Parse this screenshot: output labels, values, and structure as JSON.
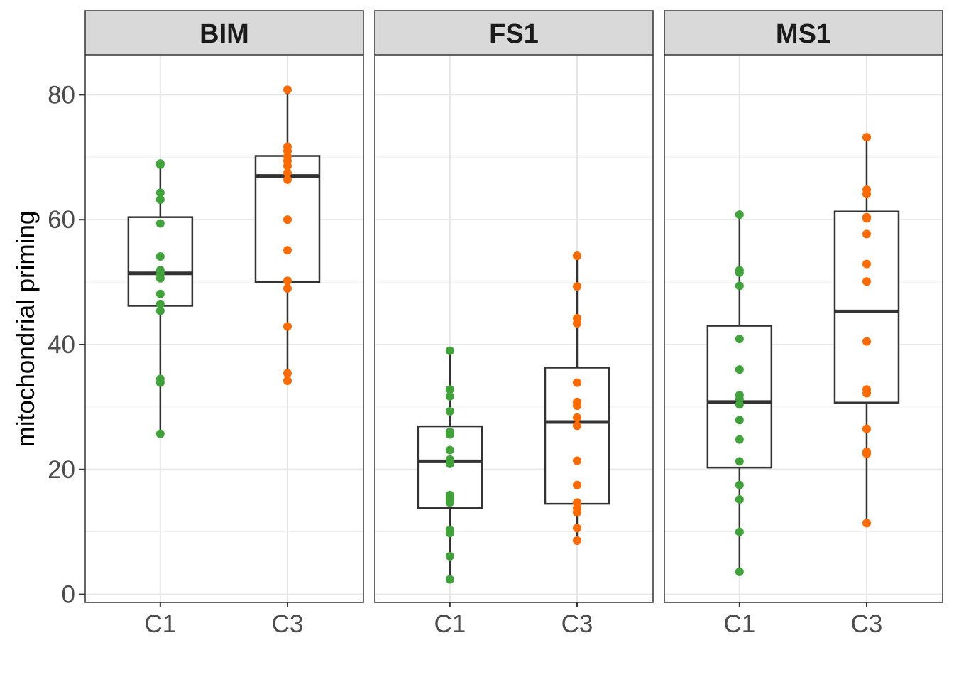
{
  "chart_data": {
    "type": "box",
    "title": "",
    "xlabel": "",
    "ylabel": "mitochondrial priming",
    "ylim": [
      -1.3,
      86.3
    ],
    "yticks": [
      0,
      20,
      40,
      60,
      80
    ],
    "ytick_labels": [
      "0",
      "20",
      "40",
      "60",
      "80"
    ],
    "grid": true,
    "categories": [
      "C1",
      "C3"
    ],
    "colors": {
      "C1": "#3fa33a",
      "C3": "#ff6a00"
    },
    "panels": [
      {
        "label": "BIM",
        "groups": [
          {
            "category": "C1",
            "box": {
              "q1": 46.2,
              "median": 51.4,
              "q3": 60.4,
              "whisker_low": 25.7,
              "whisker_high": 69.0
            },
            "points": [
              69.0,
              68.8,
              64.3,
              63.2,
              59.4,
              54.1,
              51.9,
              51.3,
              50.6,
              48.1,
              46.5,
              45.4,
              34.5,
              33.9,
              25.7
            ]
          },
          {
            "category": "C3",
            "box": {
              "q1": 50.0,
              "median": 67.0,
              "q3": 70.2,
              "whisker_low": 34.2,
              "whisker_high": 80.8
            },
            "points": [
              80.8,
              71.7,
              71.0,
              70.1,
              69.4,
              68.6,
              67.5,
              66.4,
              60.0,
              55.1,
              50.2,
              49.0,
              42.9,
              35.4,
              34.2
            ]
          }
        ]
      },
      {
        "label": "FS1",
        "groups": [
          {
            "category": "C1",
            "box": {
              "q1": 13.8,
              "median": 21.3,
              "q3": 26.9,
              "whisker_low": 2.4,
              "whisker_high": 39.0
            },
            "points": [
              39.0,
              32.8,
              31.7,
              29.3,
              26.0,
              25.6,
              23.1,
              21.6,
              20.9,
              15.9,
              15.3,
              14.7,
              10.3,
              9.8,
              6.1,
              2.4
            ]
          },
          {
            "category": "C3",
            "box": {
              "q1": 14.5,
              "median": 27.6,
              "q3": 36.3,
              "whisker_low": 8.6,
              "whisker_high": 54.2
            },
            "points": [
              54.2,
              49.3,
              44.2,
              43.4,
              33.9,
              30.8,
              30.2,
              28.3,
              27.0,
              21.4,
              17.5,
              14.7,
              13.8,
              13.1,
              10.6,
              8.6
            ]
          }
        ]
      },
      {
        "label": "MS1",
        "groups": [
          {
            "category": "C1",
            "box": {
              "q1": 20.3,
              "median": 30.8,
              "q3": 43.0,
              "whisker_low": 3.6,
              "whisker_high": 60.8
            },
            "points": [
              60.8,
              51.9,
              51.5,
              49.4,
              40.9,
              36.0,
              31.9,
              31.3,
              30.4,
              27.9,
              24.8,
              21.3,
              17.5,
              15.2,
              10.0,
              3.6
            ]
          },
          {
            "category": "C3",
            "box": {
              "q1": 30.7,
              "median": 45.3,
              "q3": 61.3,
              "whisker_low": 11.4,
              "whisker_high": 73.2
            },
            "points": [
              73.2,
              64.8,
              64.1,
              60.4,
              60.2,
              57.7,
              52.9,
              50.1,
              40.5,
              32.8,
              32.2,
              26.5,
              22.8,
              22.5,
              11.4
            ]
          }
        ]
      }
    ]
  }
}
